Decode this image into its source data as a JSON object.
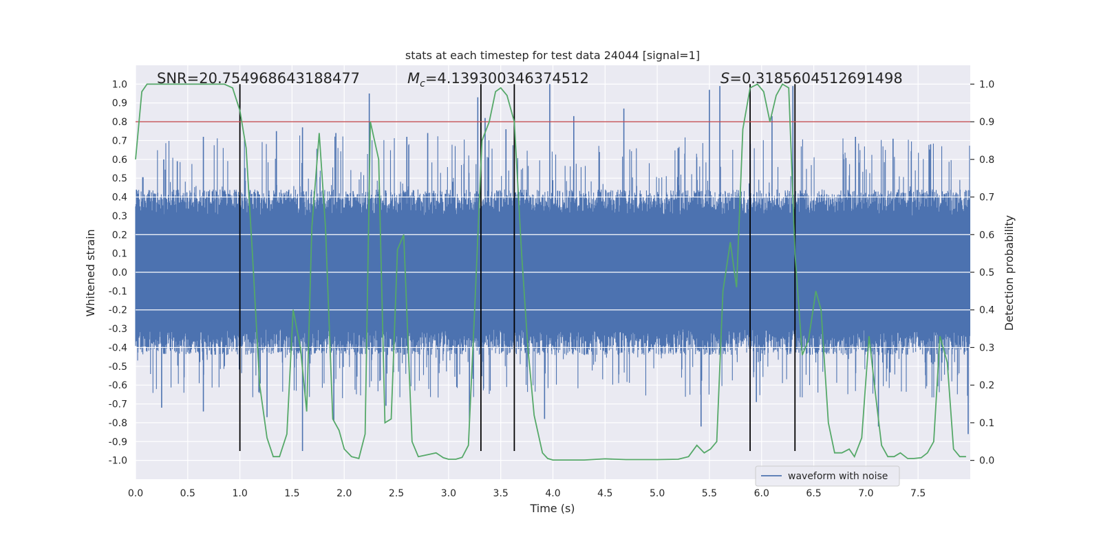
{
  "chart_data": {
    "type": "line",
    "title": "stats at each timestep for test data 24044 [signal=1]",
    "xlabel": "Time (s)",
    "ylabel": "Whitened strain",
    "y2label": "Detection probability",
    "xlim": [
      0.0,
      8.0
    ],
    "ylim": [
      -1.1,
      1.1
    ],
    "y2lim": [
      -0.05,
      1.05
    ],
    "grid": true,
    "x_ticks": [
      0.0,
      0.5,
      1.0,
      1.5,
      2.0,
      2.5,
      3.0,
      3.5,
      4.0,
      4.5,
      5.0,
      5.5,
      6.0,
      6.5,
      7.0,
      7.5
    ],
    "x_tick_labels": [
      "0.0",
      "0.5",
      "1.0",
      "1.5",
      "2.0",
      "2.5",
      "3.0",
      "3.5",
      "4.0",
      "4.5",
      "5.0",
      "5.5",
      "6.0",
      "6.5",
      "7.0",
      "7.5"
    ],
    "y_ticks": [
      1.0,
      0.9,
      0.8,
      0.7,
      0.6,
      0.5,
      0.4,
      0.3,
      0.2,
      0.1,
      0.0,
      -0.1,
      -0.2,
      -0.3,
      -0.4,
      -0.5,
      -0.6,
      -0.7,
      -0.8,
      -0.9,
      -1.0
    ],
    "y_tick_labels": [
      "1.0",
      "0.9",
      "0.8",
      "0.7",
      "0.6",
      "0.5",
      "0.4",
      "0.3",
      "0.2",
      "0.1",
      "0.0",
      "-0.1",
      "-0.2",
      "-0.3",
      "-0.4",
      "-0.5",
      "-0.6",
      "-0.7",
      "-0.8",
      "-0.9",
      "-1.0"
    ],
    "y2_ticks": [
      1.0,
      0.9,
      0.8,
      0.7,
      0.6,
      0.5,
      0.4,
      0.3,
      0.2,
      0.1,
      0.0
    ],
    "y2_tick_labels": [
      "1.0",
      "0.9",
      "0.8",
      "0.7",
      "0.6",
      "0.5",
      "0.4",
      "0.3",
      "0.2",
      "0.1",
      "0.0"
    ],
    "annotations": {
      "snr": "SNR=20.754968643188477",
      "mc_symbol": "M",
      "mc_subscript": "c",
      "mc_value": "=4.139300346374512",
      "s_symbol": "S",
      "s_value": "=0.3185604512691498"
    },
    "threshold": {
      "value": 0.9,
      "axis": "y2",
      "color": "#c44e52"
    },
    "vertical_lines": {
      "x": [
        1.0,
        3.31,
        3.63,
        5.89,
        6.32
      ],
      "y_range": [
        -0.95,
        1.0
      ],
      "color": "#000000"
    },
    "waveform": {
      "name": "waveform with noise",
      "color": "#4c72b0",
      "envelope_typical": 0.4,
      "spikes": [
        [
          0.27,
          0.6
        ],
        [
          0.4,
          0.59
        ],
        [
          0.65,
          0.72
        ],
        [
          1.35,
          0.75
        ],
        [
          1.6,
          0.77
        ],
        [
          1.92,
          0.74
        ],
        [
          2.24,
          0.95
        ],
        [
          2.6,
          0.72
        ],
        [
          2.8,
          0.74
        ],
        [
          3.28,
          0.93
        ],
        [
          3.35,
          0.82
        ],
        [
          3.55,
          0.76
        ],
        [
          3.97,
          1.0
        ],
        [
          4.2,
          0.83
        ],
        [
          4.68,
          0.87
        ],
        [
          5.2,
          0.66
        ],
        [
          5.5,
          0.97
        ],
        [
          5.6,
          0.99
        ],
        [
          6.1,
          0.83
        ],
        [
          6.3,
          0.99
        ],
        [
          6.9,
          0.72
        ],
        [
          7.26,
          0.71
        ],
        [
          7.62,
          0.68
        ]
      ],
      "neg_spikes": [
        [
          0.25,
          -0.72
        ],
        [
          0.65,
          -0.74
        ],
        [
          1.26,
          -0.77
        ],
        [
          1.6,
          -0.95
        ],
        [
          1.9,
          -0.79
        ],
        [
          2.4,
          -0.71
        ],
        [
          3.2,
          -0.8
        ],
        [
          3.92,
          -0.78
        ],
        [
          5.42,
          -0.82
        ],
        [
          5.95,
          -0.69
        ],
        [
          7.12,
          -0.82
        ],
        [
          7.98,
          -0.86
        ]
      ]
    },
    "probability": {
      "color": "#55a868",
      "x": [
        0.0,
        0.06,
        0.11,
        0.2,
        0.5,
        0.85,
        0.93,
        1.0,
        1.06,
        1.12,
        1.19,
        1.26,
        1.32,
        1.38,
        1.45,
        1.51,
        1.58,
        1.64,
        1.69,
        1.76,
        1.82,
        1.89,
        1.95,
        2.0,
        2.07,
        2.14,
        2.2,
        2.25,
        2.33,
        2.39,
        2.45,
        2.51,
        2.57,
        2.65,
        2.71,
        2.8,
        2.88,
        2.95,
        3.0,
        3.07,
        3.13,
        3.19,
        3.25,
        3.32,
        3.39,
        3.45,
        3.5,
        3.56,
        3.63,
        3.7,
        3.76,
        3.82,
        3.9,
        3.95,
        4.0,
        4.1,
        4.3,
        4.5,
        4.7,
        5.0,
        5.2,
        5.3,
        5.38,
        5.45,
        5.51,
        5.57,
        5.63,
        5.7,
        5.76,
        5.82,
        5.89,
        5.96,
        6.02,
        6.08,
        6.14,
        6.2,
        6.26,
        6.32,
        6.39,
        6.45,
        6.52,
        6.57,
        6.64,
        6.7,
        6.77,
        6.84,
        6.89,
        6.96,
        7.03,
        7.09,
        7.15,
        7.21,
        7.27,
        7.33,
        7.4,
        7.46,
        7.53,
        7.59,
        7.65,
        7.71,
        7.78,
        7.84,
        7.9,
        7.96
      ],
      "y": [
        0.8,
        0.98,
        1.0,
        1.0,
        1.0,
        1.0,
        0.99,
        0.93,
        0.83,
        0.55,
        0.2,
        0.06,
        0.01,
        0.01,
        0.07,
        0.4,
        0.3,
        0.13,
        0.62,
        0.87,
        0.62,
        0.11,
        0.08,
        0.03,
        0.01,
        0.005,
        0.07,
        0.9,
        0.8,
        0.1,
        0.11,
        0.56,
        0.6,
        0.05,
        0.01,
        0.015,
        0.02,
        0.007,
        0.003,
        0.003,
        0.008,
        0.04,
        0.4,
        0.85,
        0.9,
        0.98,
        0.99,
        0.97,
        0.9,
        0.55,
        0.3,
        0.12,
        0.02,
        0.005,
        0.001,
        0.001,
        0.001,
        0.004,
        0.002,
        0.002,
        0.003,
        0.01,
        0.04,
        0.02,
        0.03,
        0.05,
        0.45,
        0.58,
        0.46,
        0.88,
        0.99,
        1.0,
        0.98,
        0.9,
        0.97,
        1.0,
        0.99,
        0.55,
        0.28,
        0.32,
        0.45,
        0.4,
        0.1,
        0.02,
        0.02,
        0.03,
        0.01,
        0.06,
        0.33,
        0.18,
        0.04,
        0.01,
        0.01,
        0.02,
        0.005,
        0.005,
        0.007,
        0.02,
        0.05,
        0.33,
        0.26,
        0.03,
        0.01,
        0.01
      ]
    },
    "legend": {
      "label": "waveform with noise",
      "placement": "lower-right"
    },
    "colors": {
      "plot_bg": "#eaeaf2",
      "grid": "#ffffff"
    }
  }
}
